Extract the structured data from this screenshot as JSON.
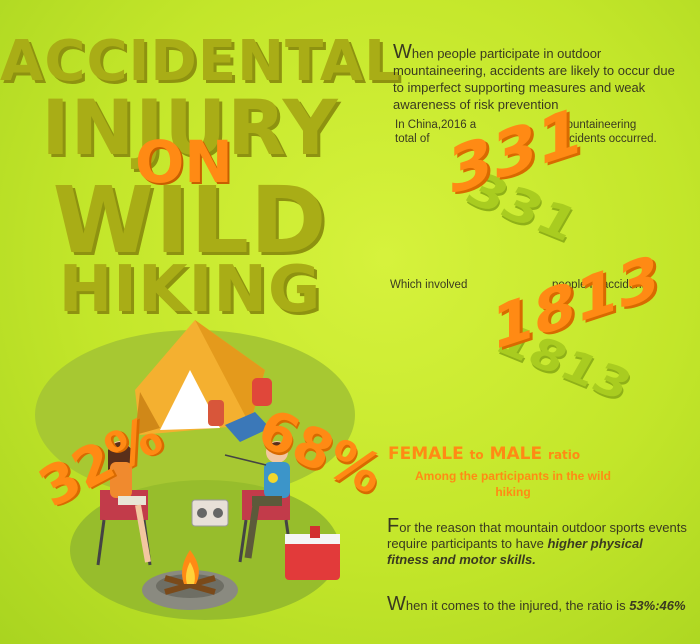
{
  "title": {
    "line1": "ACCIDENTAL",
    "line2": "INJURY",
    "on": "ON",
    "line3": "WILD",
    "line4": "HIKING"
  },
  "intro": {
    "first_letter": "W",
    "rest": "hen people participate in outdoor mountaineering, accidents are likely to occur due to imperfect supporting measures and weak awareness of risk prevention"
  },
  "stat1": {
    "prefix": "In China,2016 a total of",
    "number": "331",
    "suffix": "mountaineering accidents occurred."
  },
  "stat2": {
    "prefix": "Which involved",
    "number": "1813",
    "suffix": "people in accidents."
  },
  "ratio": {
    "female_pct": "32%",
    "male_pct": "68%",
    "title_female": "FEMALE",
    "title_to": "to",
    "title_male": "MALE",
    "title_ratio": "ratio",
    "subtitle": "Among the participants in the wild hiking"
  },
  "para2": {
    "first_letter": "F",
    "rest_before": "or the reason that mountain outdoor sports events require participants to have ",
    "emphasis": "higher physical fitness and motor skills."
  },
  "para3": {
    "first_letter": "W",
    "rest_before": "hen it comes to the injured, the ratio is ",
    "emphasis": "53%:46%"
  },
  "colors": {
    "background": "#c3e62a",
    "title": "#a9ad16",
    "accent": "#ff8a14",
    "text": "#3a3a20"
  }
}
